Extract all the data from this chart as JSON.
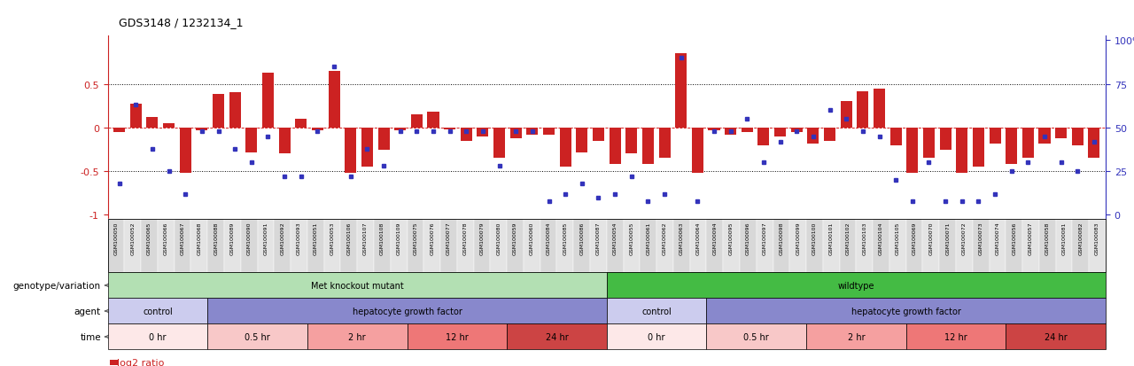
{
  "title": "GDS3148 / 1232134_1",
  "samples": [
    "GSM100050",
    "GSM100052",
    "GSM100065",
    "GSM100066",
    "GSM100067",
    "GSM100068",
    "GSM100088",
    "GSM100089",
    "GSM100090",
    "GSM100091",
    "GSM100092",
    "GSM100093",
    "GSM100051",
    "GSM100053",
    "GSM100106",
    "GSM100107",
    "GSM100108",
    "GSM100109",
    "GSM100075",
    "GSM100076",
    "GSM100077",
    "GSM100078",
    "GSM100079",
    "GSM100080",
    "GSM100059",
    "GSM100060",
    "GSM100084",
    "GSM100085",
    "GSM100086",
    "GSM100087",
    "GSM100054",
    "GSM100055",
    "GSM100061",
    "GSM100062",
    "GSM100063",
    "GSM100064",
    "GSM100094",
    "GSM100095",
    "GSM100096",
    "GSM100097",
    "GSM100098",
    "GSM100099",
    "GSM100100",
    "GSM100101",
    "GSM100102",
    "GSM100103",
    "GSM100104",
    "GSM100105",
    "GSM100069",
    "GSM100070",
    "GSM100071",
    "GSM100072",
    "GSM100073",
    "GSM100074",
    "GSM100056",
    "GSM100057",
    "GSM100058",
    "GSM100081",
    "GSM100082",
    "GSM100083"
  ],
  "log2_ratio": [
    -0.05,
    0.27,
    0.12,
    0.05,
    -0.52,
    -0.03,
    0.38,
    0.4,
    -0.28,
    0.63,
    -0.3,
    0.1,
    -0.03,
    0.65,
    -0.52,
    -0.45,
    -0.25,
    -0.03,
    0.15,
    0.18,
    -0.02,
    -0.15,
    -0.1,
    -0.35,
    -0.12,
    -0.08,
    -0.08,
    -0.45,
    -0.28,
    -0.15,
    -0.42,
    -0.3,
    -0.42,
    -0.35,
    0.85,
    -0.52,
    -0.03,
    -0.08,
    -0.05,
    -0.2,
    -0.1,
    -0.05,
    -0.18,
    -0.15,
    0.3,
    0.42,
    0.45,
    -0.2,
    -0.52,
    -0.35,
    -0.25,
    -0.52,
    -0.45,
    -0.18,
    -0.42,
    -0.35,
    -0.18,
    -0.12,
    -0.2,
    -0.35
  ],
  "percentile": [
    18,
    63,
    38,
    25,
    12,
    48,
    48,
    38,
    30,
    45,
    22,
    22,
    48,
    85,
    22,
    38,
    28,
    48,
    48,
    48,
    48,
    48,
    48,
    28,
    48,
    48,
    8,
    12,
    18,
    10,
    12,
    22,
    8,
    12,
    90,
    8,
    48,
    48,
    55,
    30,
    42,
    48,
    45,
    60,
    55,
    48,
    45,
    20,
    8,
    30,
    8,
    8,
    8,
    12,
    25,
    30,
    45,
    30,
    25,
    42
  ],
  "n_samples": 60,
  "bar_color": "#cc2222",
  "dot_color": "#3333bb",
  "bg_color": "#ffffff",
  "genotype_groups": [
    {
      "label": "Met knockout mutant",
      "start": 0,
      "end": 30,
      "color": "#b3e0b3"
    },
    {
      "label": "wildtype",
      "start": 30,
      "end": 60,
      "color": "#44bb44"
    }
  ],
  "agent_groups": [
    {
      "label": "control",
      "start": 0,
      "end": 6,
      "color": "#ccccee"
    },
    {
      "label": "hepatocyte growth factor",
      "start": 6,
      "end": 30,
      "color": "#8888cc"
    },
    {
      "label": "control",
      "start": 30,
      "end": 36,
      "color": "#ccccee"
    },
    {
      "label": "hepatocyte growth factor",
      "start": 36,
      "end": 60,
      "color": "#8888cc"
    }
  ],
  "time_groups": [
    {
      "label": "0 hr",
      "start": 0,
      "end": 6,
      "color": "#fde8e8"
    },
    {
      "label": "0.5 hr",
      "start": 6,
      "end": 12,
      "color": "#f8c8c8"
    },
    {
      "label": "2 hr",
      "start": 12,
      "end": 18,
      "color": "#f5a0a0"
    },
    {
      "label": "12 hr",
      "start": 18,
      "end": 24,
      "color": "#ee7777"
    },
    {
      "label": "24 hr",
      "start": 24,
      "end": 30,
      "color": "#cc4444"
    },
    {
      "label": "0 hr",
      "start": 30,
      "end": 36,
      "color": "#fde8e8"
    },
    {
      "label": "0.5 hr",
      "start": 36,
      "end": 42,
      "color": "#f8c8c8"
    },
    {
      "label": "2 hr",
      "start": 42,
      "end": 48,
      "color": "#f5a0a0"
    },
    {
      "label": "12 hr",
      "start": 48,
      "end": 54,
      "color": "#ee7777"
    },
    {
      "label": "24 hr",
      "start": 54,
      "end": 60,
      "color": "#cc4444"
    }
  ]
}
